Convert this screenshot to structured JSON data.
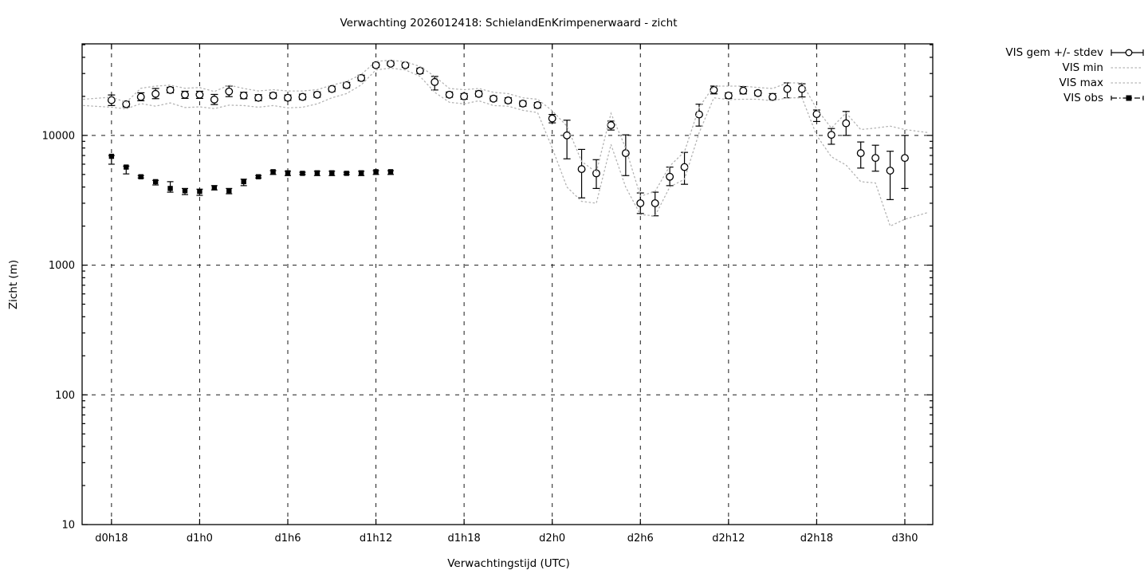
{
  "title": "Verwachting 2026012418: SchielandEnKrimpenerwaard - zicht",
  "chart_data": {
    "type": "line",
    "title": "Verwachting 2026012418: SchielandEnKrimpenerwaard - zicht",
    "xlabel": "Verwachtingstijd (UTC)",
    "ylabel": "Zicht (m)",
    "y_scale": "log",
    "ylim": [
      10,
      50800
    ],
    "x_domain": [
      -2,
      55.9
    ],
    "grid": true,
    "legend_position": "outside-top-right",
    "y_tick_values": [
      10,
      100,
      1000,
      10000
    ],
    "y_tick_labels": [
      "10",
      "100",
      "1000",
      "10000"
    ],
    "x_tick_hours": [
      0,
      6,
      12,
      18,
      24,
      30,
      36,
      42,
      48,
      54
    ],
    "x_tick_labels": [
      "d0h18",
      "d1h0",
      "d1h6",
      "d1h12",
      "d1h18",
      "d2h0",
      "d2h6",
      "d2h12",
      "d2h18",
      "d3h0"
    ],
    "series": [
      {
        "name": "VIS gem +/- stdev",
        "style": "errorbar-circle",
        "x": [
          0,
          1,
          2,
          3,
          4,
          5,
          6,
          7,
          8,
          9,
          10,
          11,
          12,
          13,
          14,
          15,
          16,
          17,
          18,
          19,
          20,
          21,
          22,
          23,
          24,
          25,
          26,
          27,
          28,
          29,
          30,
          31,
          32,
          33,
          34,
          35,
          36,
          37,
          38,
          39,
          40,
          41,
          42,
          43,
          44,
          45,
          46,
          47,
          48,
          49,
          50,
          51,
          52,
          53,
          54
        ],
        "mean": [
          18700,
          17400,
          19800,
          20900,
          22400,
          20600,
          20600,
          18900,
          21800,
          20300,
          19500,
          20300,
          19500,
          19800,
          20600,
          22800,
          24400,
          27700,
          34800,
          35700,
          34800,
          31500,
          25800,
          20600,
          20000,
          20900,
          19200,
          18600,
          17600,
          17100,
          13500,
          10000,
          5500,
          5100,
          12000,
          7300,
          3000,
          3000,
          4800,
          5700,
          14500,
          22400,
          20300,
          22100,
          21200,
          19800,
          22800,
          22800,
          14600,
          10100,
          12400,
          7300,
          6700,
          5350,
          6700
        ],
        "lo": [
          17000,
          16600,
          18500,
          19200,
          21300,
          19300,
          19300,
          17300,
          19900,
          19200,
          18500,
          19400,
          18600,
          18900,
          19700,
          21800,
          23300,
          26400,
          33500,
          34500,
          33500,
          30000,
          22400,
          19700,
          19000,
          20000,
          18400,
          17800,
          16800,
          16300,
          12500,
          6600,
          3300,
          3900,
          11000,
          4900,
          2500,
          2400,
          4100,
          4200,
          11800,
          20900,
          19300,
          20900,
          20300,
          18900,
          19500,
          19800,
          12800,
          8550,
          10000,
          5600,
          5300,
          3200,
          3900
        ],
        "hi": [
          20500,
          18300,
          21300,
          23000,
          23500,
          21900,
          21900,
          20700,
          24000,
          21500,
          20600,
          21300,
          20500,
          20800,
          21600,
          23900,
          25600,
          29100,
          36200,
          37000,
          36200,
          33000,
          28500,
          21600,
          21000,
          22000,
          20100,
          19500,
          18400,
          17900,
          14500,
          13100,
          7800,
          6500,
          12900,
          10100,
          3600,
          3650,
          5700,
          7400,
          17400,
          24000,
          21300,
          23800,
          22100,
          21000,
          25400,
          25000,
          15700,
          11300,
          15300,
          8900,
          8400,
          7550,
          10000
        ]
      },
      {
        "name": "VIS min",
        "style": "dotted",
        "x": [
          -1.9,
          0,
          1,
          2,
          3,
          4,
          5,
          6,
          7,
          8,
          9,
          10,
          11,
          12,
          13,
          14,
          15,
          16,
          17,
          18,
          19,
          20,
          21,
          22,
          23,
          24,
          25,
          26,
          27,
          28,
          29,
          30,
          31,
          32,
          33,
          34,
          35,
          36,
          37,
          38,
          39,
          40,
          41,
          42,
          43,
          44,
          45,
          46,
          47,
          48,
          49,
          50,
          51,
          52,
          53,
          54,
          55.6
        ],
        "values": [
          17000,
          16500,
          16000,
          17600,
          16800,
          17800,
          16400,
          16600,
          16100,
          17100,
          17000,
          16500,
          17000,
          16300,
          16500,
          17500,
          19500,
          21000,
          24500,
          32000,
          33000,
          32000,
          28500,
          21500,
          18000,
          17500,
          18500,
          17000,
          16800,
          15600,
          15000,
          8000,
          4000,
          3100,
          3000,
          8500,
          4000,
          2450,
          2400,
          4000,
          4600,
          10500,
          19500,
          18900,
          19000,
          19000,
          18500,
          19500,
          19500,
          10000,
          6850,
          5900,
          4400,
          4300,
          2000,
          2260,
          2550
        ]
      },
      {
        "name": "VIS max",
        "style": "dotted",
        "x": [
          -1.9,
          0,
          1,
          2,
          3,
          4,
          5,
          6,
          7,
          8,
          9,
          10,
          11,
          12,
          13,
          14,
          15,
          16,
          17,
          18,
          19,
          20,
          21,
          22,
          23,
          24,
          25,
          26,
          27,
          28,
          29,
          30,
          31,
          32,
          33,
          34,
          35,
          36,
          37,
          38,
          39,
          40,
          41,
          42,
          43,
          44,
          45,
          46,
          47,
          48,
          49,
          50,
          51,
          52,
          53,
          54,
          55.6
        ],
        "values": [
          19000,
          19700,
          18000,
          23100,
          24000,
          24400,
          23100,
          23400,
          21800,
          24400,
          23000,
          22000,
          22500,
          22000,
          22000,
          22500,
          24400,
          26000,
          29500,
          37200,
          38000,
          37000,
          34000,
          28500,
          23000,
          22500,
          23000,
          21500,
          21000,
          19500,
          19000,
          15500,
          11800,
          6300,
          5200,
          14800,
          8000,
          3400,
          3700,
          5800,
          7500,
          16500,
          24000,
          24000,
          24000,
          23400,
          23000,
          25400,
          25400,
          16000,
          11400,
          14900,
          11100,
          11400,
          11800,
          11100,
          10500
        ]
      },
      {
        "name": "VIS obs",
        "style": "errorbar-square",
        "x": [
          0,
          1,
          2,
          3,
          4,
          5,
          6,
          7,
          8,
          9,
          10,
          11,
          12,
          13,
          14,
          15,
          16,
          17,
          18,
          19
        ],
        "values": [
          6900,
          5700,
          4800,
          4400,
          3900,
          3750,
          3700,
          3950,
          3750,
          4400,
          4800,
          5250,
          5150,
          5100,
          5150,
          5150,
          5100,
          5150,
          5250,
          5250
        ],
        "lo": [
          6000,
          5050,
          4700,
          4150,
          3650,
          3500,
          3450,
          3800,
          3550,
          4100,
          4700,
          5000,
          4900,
          5000,
          4900,
          4900,
          5000,
          4900,
          5000,
          5000
        ],
        "hi": [
          7000,
          5800,
          4900,
          4500,
          4400,
          3900,
          3850,
          4100,
          3900,
          4600,
          4900,
          5350,
          5300,
          5200,
          5300,
          5300,
          5200,
          5300,
          5350,
          5350
        ]
      }
    ]
  }
}
